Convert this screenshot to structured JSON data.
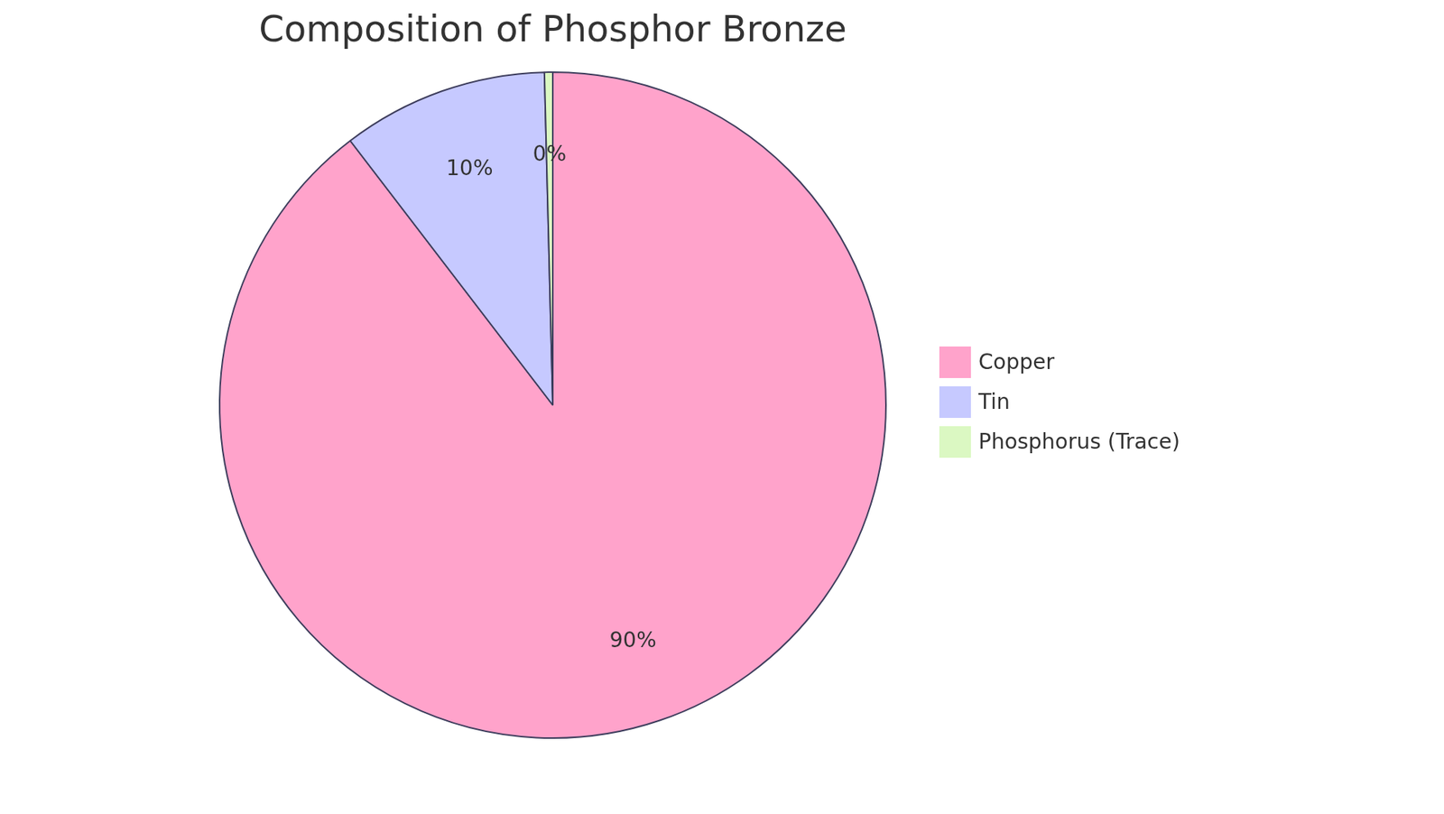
{
  "chart_data": {
    "type": "pie",
    "title": "Composition of Phosphor Bronze",
    "categories": [
      "Copper",
      "Tin",
      "Phosphorus (Trace)"
    ],
    "values": [
      89.6,
      10,
      0.4
    ],
    "value_labels": [
      "90%",
      "10%",
      "0%"
    ],
    "colors": [
      "#ffa3cb",
      "#c6c9ff",
      "#dbf8c2"
    ],
    "data_labels": true,
    "legend": "right"
  }
}
